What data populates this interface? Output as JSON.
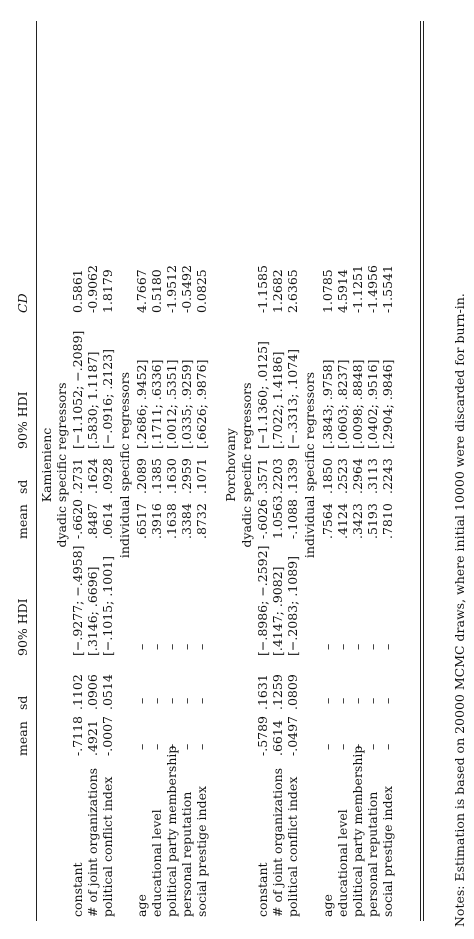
{
  "header": {
    "cols": [
      "mean",
      "sd",
      "90% HDI",
      "mean",
      "sd",
      "90% HDI",
      "CD"
    ]
  },
  "sections": [
    {
      "title": "Kamienienc",
      "dyadic_title": "dyadic specific regressors",
      "dyadic": [
        {
          "label": "constant",
          "v": [
            "-.7118",
            ".1102",
            "[−.9277; −.4958]",
            "-.6620",
            ".2731",
            "[−1.1052; −.2089]",
            "0.5861"
          ]
        },
        {
          "label": "# of joint organizations",
          "v": [
            ".4921",
            ".0906",
            "[.3146; .6696]",
            ".8487",
            ".1624",
            "[.5830; 1.1187]",
            "-0.9062"
          ]
        },
        {
          "label": "political conflict index",
          "v": [
            "-.0007",
            ".0514",
            "[−.1015; .1001]",
            ".0614",
            ".0928",
            "[−.0916; .2123]",
            "1.8179"
          ]
        }
      ],
      "indiv_title": "individual specific regressors",
      "individual": [
        {
          "label": "age",
          "v": [
            "–",
            "–",
            "–",
            ".6517",
            ".2089",
            "[.2686; .9452]",
            "4.7667"
          ]
        },
        {
          "label": "educational level",
          "v": [
            "–",
            "–",
            "–",
            ".3916",
            ".1385",
            "[.1711; .6336]",
            "0.5180"
          ]
        },
        {
          "label": "political party membership",
          "v": [
            "–",
            "–",
            "–",
            ".1638",
            ".1630",
            "[.0012; .5351]",
            "-1.9512"
          ]
        },
        {
          "label": "personal reputation",
          "v": [
            "–",
            "–",
            "–",
            ".3384",
            ".2959",
            "[.0335; .9259]",
            "-0.5492"
          ]
        },
        {
          "label": "social prestige index",
          "v": [
            "–",
            "–",
            "–",
            ".8732",
            ".1071",
            "[.6626; .9876]",
            "0.0825"
          ]
        }
      ]
    },
    {
      "title": "Porchovany",
      "dyadic_title": "dyadic specific regressors",
      "dyadic": [
        {
          "label": "constant",
          "v": [
            "-.5789",
            ".1631",
            "[−.8986; −.2592]",
            "-.6026",
            ".3571",
            "[−1.1360; .0125]",
            "-1.1585"
          ]
        },
        {
          "label": "# of joint organizations",
          "v": [
            ".6614",
            ".1259",
            "[.4147; .9082]",
            "1.0563",
            ".2203",
            "[.7022; 1.4186]",
            "1.2682"
          ]
        },
        {
          "label": "political conflict index",
          "v": [
            "-.0497",
            ".0809",
            "[−.2083; .1089]",
            "-.1088",
            ".1339",
            "[−.3313; .1074]",
            "2.6365"
          ]
        }
      ],
      "indiv_title": "individual specific regressors",
      "individual": [
        {
          "label": "age",
          "v": [
            "–",
            "–",
            "–",
            ".7564",
            ".1850",
            "[.3843; .9758]",
            "1.0785"
          ]
        },
        {
          "label": "educational level",
          "v": [
            "–",
            "–",
            "–",
            ".4124",
            ".2523",
            "[.0603; .8237]",
            "4.5914"
          ]
        },
        {
          "label": "political party membership",
          "v": [
            "–",
            "–",
            "–",
            ".3423",
            ".2964",
            "[.0098; .8848]",
            "-1.1251"
          ]
        },
        {
          "label": "personal reputation",
          "v": [
            "–",
            "–",
            "–",
            ".5193",
            ".3113",
            "[.0402; .9516]",
            "-1.4956"
          ]
        },
        {
          "label": "social prestige index",
          "v": [
            "–",
            "–",
            "–",
            ".7810",
            ".2243",
            "[.2904; .9846]",
            "-1.5541"
          ]
        }
      ]
    }
  ],
  "notes": "Notes: Estimation is based on 20000 MCMC draws, where initial 10000 were discarded for burn-in."
}
